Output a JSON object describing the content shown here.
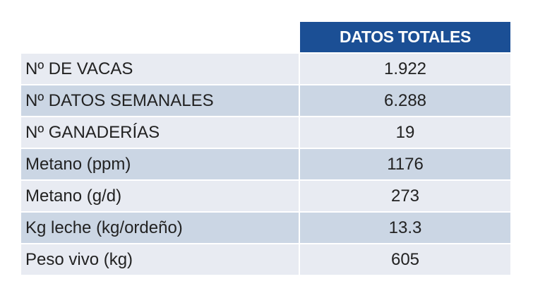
{
  "table": {
    "header": "DATOS TOTALES",
    "rows": [
      {
        "label": "Nº DE VACAS",
        "value": "1.922"
      },
      {
        "label": "Nº DATOS SEMANALES",
        "value": "6.288"
      },
      {
        "label": "Nº GANADERÍAS",
        "value": "19"
      },
      {
        "label": "Metano (ppm)",
        "value": "1176"
      },
      {
        "label": "Metano (g/d)",
        "value": "273"
      },
      {
        "label": "Kg leche (kg/ordeño)",
        "value": "13.3"
      },
      {
        "label": "Peso vivo (kg)",
        "value": "605"
      }
    ]
  },
  "colors": {
    "header_bg": "#1b4f95",
    "row_light": "#e8ebf2",
    "row_dark": "#cbd6e4"
  }
}
